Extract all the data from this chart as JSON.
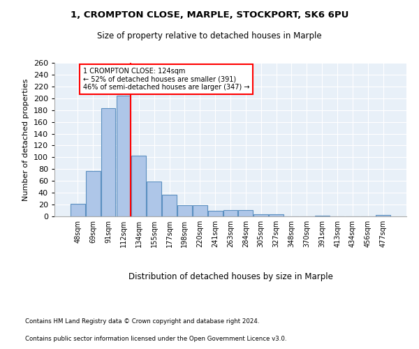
{
  "title1": "1, CROMPTON CLOSE, MARPLE, STOCKPORT, SK6 6PU",
  "title2": "Size of property relative to detached houses in Marple",
  "xlabel": "Distribution of detached houses by size in Marple",
  "ylabel": "Number of detached properties",
  "categories": [
    "48sqm",
    "69sqm",
    "91sqm",
    "112sqm",
    "134sqm",
    "155sqm",
    "177sqm",
    "198sqm",
    "220sqm",
    "241sqm",
    "263sqm",
    "284sqm",
    "305sqm",
    "327sqm",
    "348sqm",
    "370sqm",
    "391sqm",
    "413sqm",
    "434sqm",
    "456sqm",
    "477sqm"
  ],
  "values": [
    21,
    77,
    183,
    204,
    103,
    59,
    37,
    19,
    19,
    10,
    11,
    11,
    3,
    3,
    0,
    0,
    1,
    0,
    0,
    0,
    2
  ],
  "bar_color": "#aec6e8",
  "bar_edge_color": "#5a8fc0",
  "vline_x": 3.475,
  "annotation_text": "1 CROMPTON CLOSE: 124sqm\n← 52% of detached houses are smaller (391)\n46% of semi-detached houses are larger (347) →",
  "annotation_box_color": "white",
  "annotation_box_edge_color": "red",
  "vline_color": "red",
  "ylim": [
    0,
    260
  ],
  "yticks": [
    0,
    20,
    40,
    60,
    80,
    100,
    120,
    140,
    160,
    180,
    200,
    220,
    240,
    260
  ],
  "footer1": "Contains HM Land Registry data © Crown copyright and database right 2024.",
  "footer2": "Contains public sector information licensed under the Open Government Licence v3.0.",
  "plot_bg_color": "#e8f0f8",
  "grid_color": "white"
}
